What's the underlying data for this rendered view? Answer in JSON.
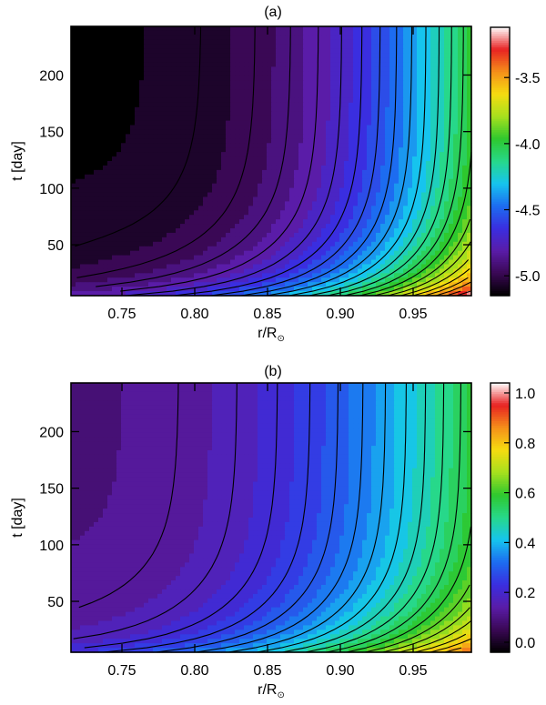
{
  "chart_data": [
    {
      "type": "heatmap",
      "title": "(a)",
      "xlabel": "r/R",
      "xlabel_sub": "⊙",
      "ylabel": "t [day]",
      "xlim": [
        0.715,
        0.99
      ],
      "ylim": [
        5,
        243
      ],
      "x_ticks": [
        "0.75",
        "0.80",
        "0.85",
        "0.90",
        "0.95"
      ],
      "y_ticks": [
        "50",
        "100",
        "150",
        "200"
      ],
      "colorbar": {
        "range": [
          -5.15,
          -3.12
        ],
        "ticks": [
          "-5.0",
          "-4.5",
          "-4.0",
          "-3.5"
        ],
        "tick_values": [
          -5.0,
          -4.5,
          -4.0,
          -3.5
        ]
      },
      "field": {
        "base": -5.12,
        "amp": 2.05,
        "r_exponent": 2.7,
        "contour_levels": 24
      }
    },
    {
      "type": "heatmap",
      "title": "(b)",
      "xlabel": "r/R",
      "xlabel_sub": "⊙",
      "ylabel": "t [day]",
      "xlim": [
        0.715,
        0.99
      ],
      "ylim": [
        5,
        243
      ],
      "x_ticks": [
        "0.75",
        "0.80",
        "0.85",
        "0.90",
        "0.95"
      ],
      "y_ticks": [
        "50",
        "100",
        "150",
        "200"
      ],
      "colorbar": {
        "range": [
          -0.04,
          1.04
        ],
        "ticks": [
          "0.0",
          "0.2",
          "0.4",
          "0.6",
          "0.8",
          "1.0"
        ],
        "tick_values": [
          0.0,
          0.2,
          0.4,
          0.6,
          0.8,
          1.0
        ]
      },
      "field": {
        "base": 0.1,
        "amp": 0.85,
        "r_exponent": 2.2,
        "contour_levels": 26
      }
    }
  ],
  "colormap": [
    "#000000",
    "#3a0855",
    "#5a1ca8",
    "#3a2ee0",
    "#1d6cf0",
    "#16c4ee",
    "#27d88a",
    "#2ec82e",
    "#a6e01e",
    "#f5dc10",
    "#f5901a",
    "#e82222",
    "#ffffff"
  ]
}
